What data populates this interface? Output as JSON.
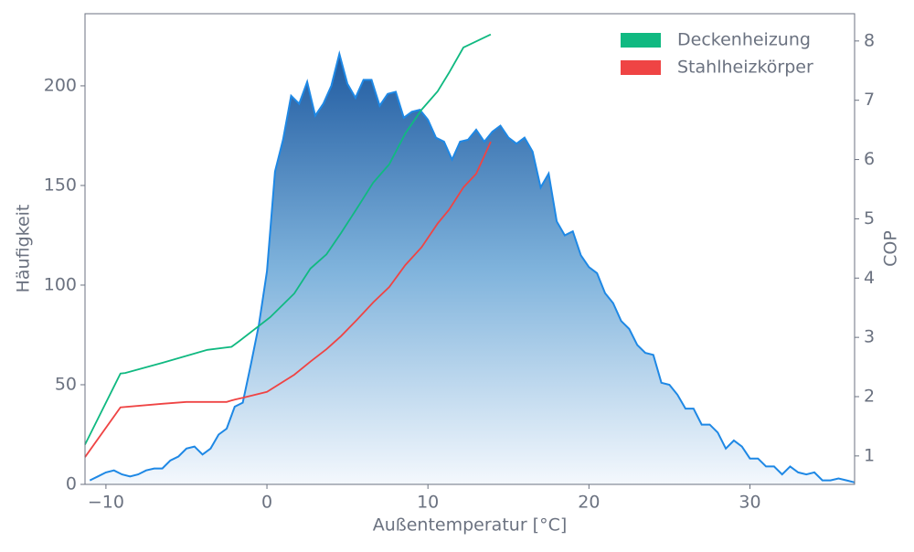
{
  "chart_data": {
    "type": "line",
    "xlabel": "Außentemperatur [°C]",
    "ylabel": "Häufigkeit",
    "y2label": "COP",
    "xlim": [
      -11.3,
      36.5
    ],
    "ylim": [
      0,
      236.2
    ],
    "y2lim": [
      0.52,
      8.46
    ],
    "xticks": [
      {
        "value": -10,
        "label": "−10"
      },
      0,
      10,
      20,
      30
    ],
    "yticks": [
      0,
      50,
      100,
      150,
      200
    ],
    "y2ticks": [
      1,
      2,
      3,
      4,
      5,
      6,
      7,
      8
    ],
    "legend": "upper right",
    "series": [
      {
        "color": "#1e88e5",
        "fill": true,
        "axis": "y",
        "x": [
          -11,
          -10.5,
          -10,
          -9.5,
          -9,
          -8.5,
          -8,
          -7.5,
          -7,
          -6.5,
          -6,
          -5.5,
          -5,
          -4.5,
          -4,
          -3.5,
          -3,
          -2.5,
          -2,
          -1.5,
          -1,
          -0.5,
          0,
          0.5,
          1,
          1.5,
          2,
          2.5,
          3,
          3.5,
          4,
          4.5,
          5,
          5.5,
          6,
          6.5,
          7,
          7.5,
          8,
          8.5,
          9,
          9.5,
          10,
          10.5,
          11,
          11.5,
          12,
          12.5,
          13,
          13.5,
          14,
          14.5,
          15,
          15.5,
          16,
          16.5,
          17,
          17.5,
          18,
          18.5,
          19,
          19.5,
          20,
          20.5,
          21,
          21.5,
          22,
          22.5,
          23,
          23.5,
          24,
          24.5,
          25,
          25.5,
          26,
          26.5,
          27,
          27.5,
          28,
          28.5,
          29,
          29.5,
          30,
          30.5,
          31,
          31.5,
          32,
          32.5,
          33,
          33.5,
          34,
          34.5,
          35,
          35.5,
          36,
          36.5
        ],
        "values": [
          2,
          4,
          6,
          7,
          5,
          4,
          5,
          7,
          8,
          8,
          12,
          14,
          18,
          19,
          15,
          18,
          25,
          28,
          39,
          41,
          60,
          80,
          107,
          157,
          173,
          195,
          191,
          202,
          185,
          191,
          200,
          216,
          201,
          194,
          203,
          203,
          190,
          196,
          197,
          184,
          187,
          188,
          183,
          174,
          172,
          163,
          172,
          173,
          178,
          172,
          177,
          180,
          174,
          171,
          174,
          167,
          149,
          156,
          132,
          125,
          127,
          115,
          109,
          106,
          96,
          91,
          82,
          78,
          70,
          66,
          65,
          51,
          50,
          45,
          38,
          38,
          30,
          30,
          26,
          18,
          22,
          19,
          13,
          13,
          9,
          9,
          5,
          9,
          6,
          5,
          6,
          2,
          2,
          3,
          2,
          1
        ]
      },
      {
        "name": "Deckenheizung",
        "color": "#10b981",
        "axis": "y2",
        "x": [
          -11.3,
          -9.1,
          -8.8,
          -6.5,
          -3.7,
          -2.2,
          -1.7,
          0.2,
          1.7,
          2.7,
          3.7,
          4.6,
          5.6,
          6.6,
          7.6,
          8.6,
          9.6,
          10.6,
          11.3,
          12.2,
          13.9
        ],
        "values": [
          1.19,
          2.39,
          2.4,
          2.57,
          2.79,
          2.84,
          2.94,
          3.34,
          3.74,
          4.16,
          4.4,
          4.76,
          5.18,
          5.61,
          5.92,
          6.44,
          6.84,
          7.15,
          7.46,
          7.89,
          8.11
        ]
      },
      {
        "name": "Stahlheizkörper",
        "color": "#ef4444",
        "axis": "y2",
        "x": [
          -11.3,
          -9.1,
          -6.5,
          -5,
          -2.5,
          -2,
          -1.5,
          0,
          1.7,
          2.7,
          3.7,
          4.6,
          5.6,
          6.6,
          7.6,
          8.6,
          9.6,
          10.6,
          11.3,
          12.2,
          13,
          13.9
        ],
        "values": [
          0.98,
          1.82,
          1.88,
          1.91,
          1.91,
          1.95,
          1.98,
          2.08,
          2.37,
          2.59,
          2.8,
          3.02,
          3.3,
          3.59,
          3.85,
          4.22,
          4.52,
          4.92,
          5.15,
          5.53,
          5.76,
          6.3
        ]
      }
    ]
  }
}
